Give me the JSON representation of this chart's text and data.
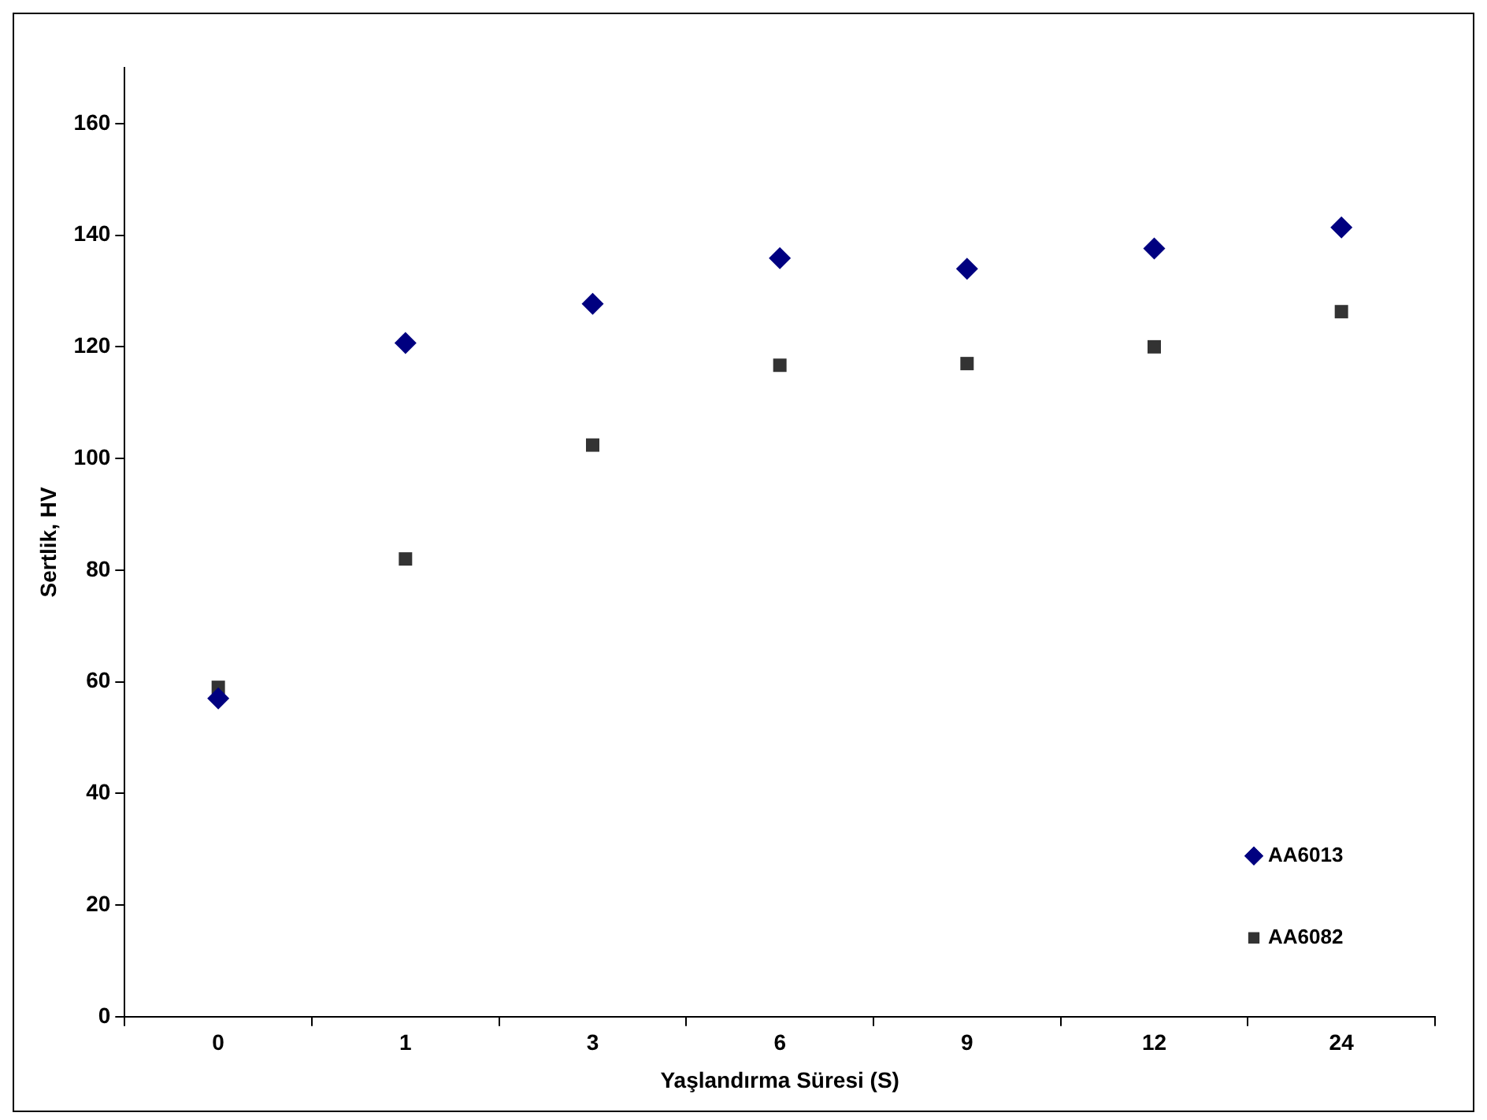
{
  "chart_data": {
    "type": "scatter",
    "xlabel": "Yaşlandırma Süresi (S)",
    "ylabel": "Sertlik, HV",
    "categories": [
      "0",
      "1",
      "3",
      "6",
      "9",
      "12",
      "24"
    ],
    "ylim": [
      0,
      170
    ],
    "yticks": [
      0,
      20,
      40,
      60,
      80,
      100,
      120,
      140,
      160
    ],
    "grid": false,
    "legend": "bottom right",
    "series": [
      {
        "name": "AA6013",
        "color": "#000080",
        "marker": "diamond",
        "values": [
          57,
          120.7,
          127.7,
          135.9,
          134,
          137.6,
          141.4
        ]
      },
      {
        "name": "AA6082",
        "color": "#333333",
        "marker": "square",
        "values": [
          59,
          82,
          102.4,
          116.7,
          117,
          120,
          126.3
        ]
      }
    ]
  }
}
